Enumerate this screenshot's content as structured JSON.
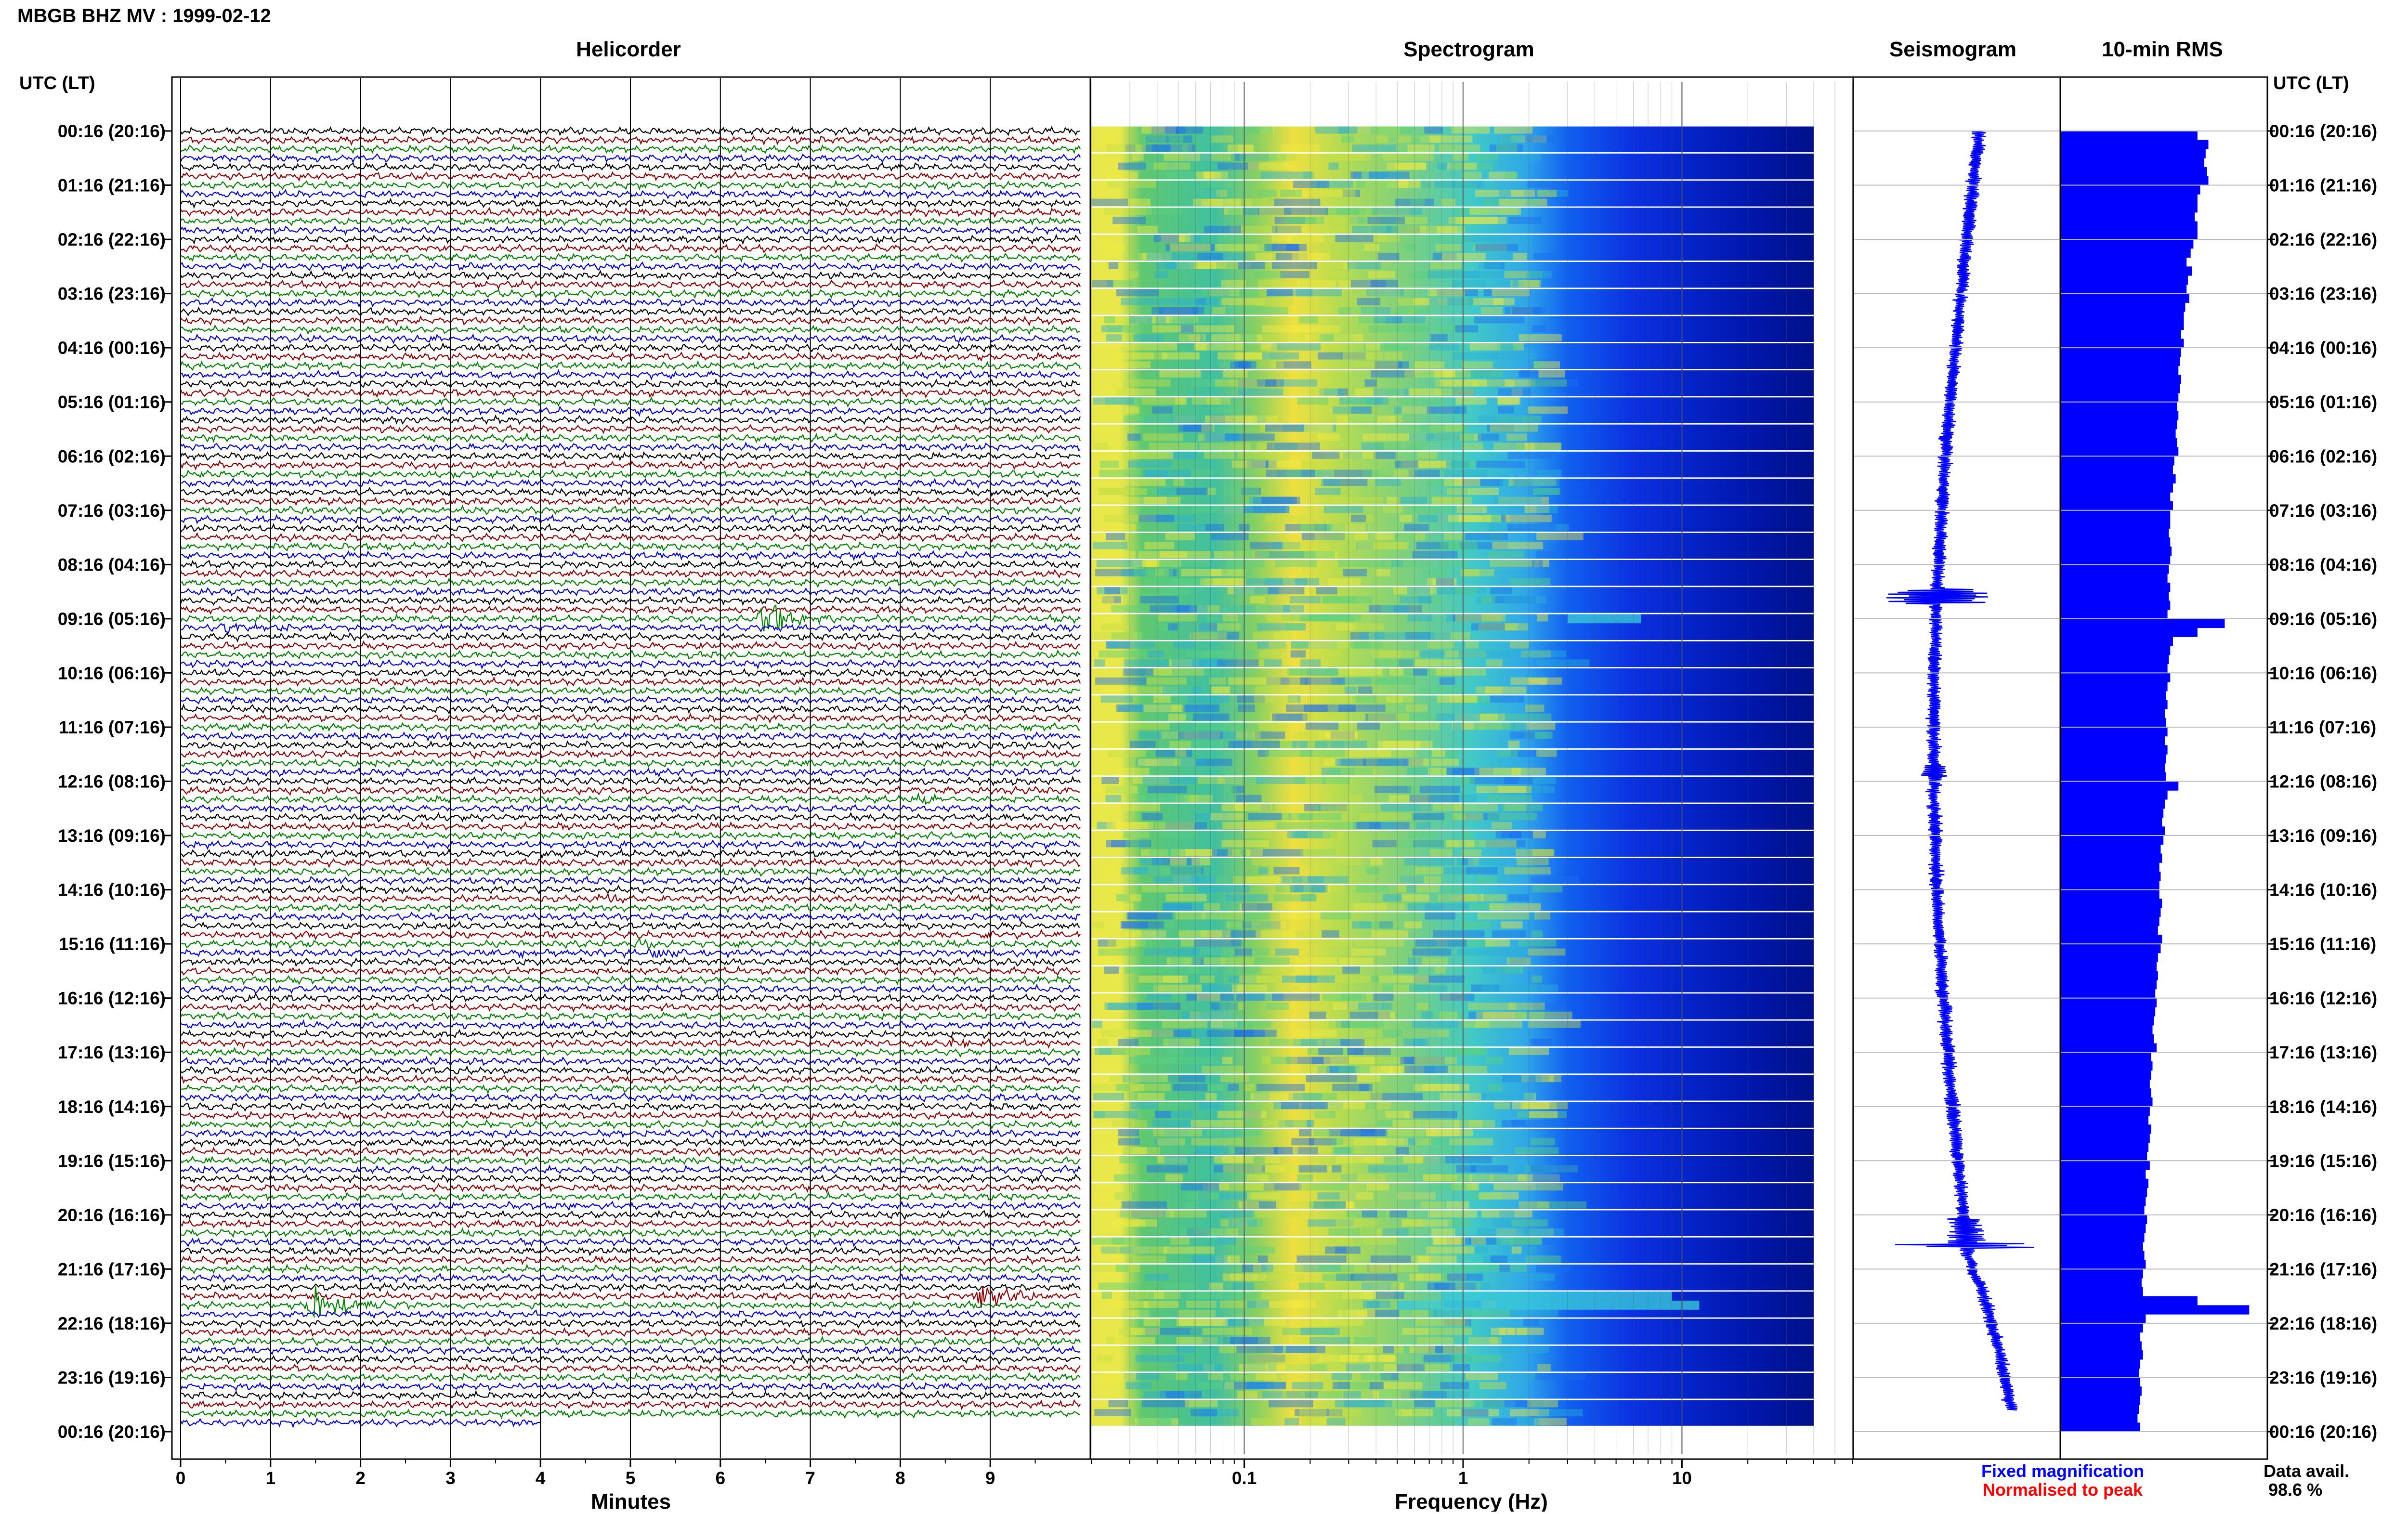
{
  "header": {
    "title": "MBGB BHZ MV : 1999-02-12",
    "utc_label_left": "UTC (LT)",
    "utc_label_right": "UTC (LT)"
  },
  "panels": {
    "helicorder": "Helicorder",
    "spectrogram": "Spectrogram",
    "seismogram": "Seismogram",
    "rms": "10-min RMS"
  },
  "time_labels": [
    "00:16 (20:16)",
    "01:16 (21:16)",
    "02:16 (22:16)",
    "03:16 (23:16)",
    "04:16 (00:16)",
    "05:16 (01:16)",
    "06:16 (02:16)",
    "07:16 (03:16)",
    "08:16 (04:16)",
    "09:16 (05:16)",
    "10:16 (06:16)",
    "11:16 (07:16)",
    "12:16 (08:16)",
    "13:16 (09:16)",
    "14:16 (10:16)",
    "15:16 (11:16)",
    "16:16 (12:16)",
    "17:16 (13:16)",
    "18:16 (14:16)",
    "19:16 (15:16)",
    "20:16 (16:16)",
    "21:16 (17:16)",
    "22:16 (18:16)",
    "23:16 (19:16)",
    "00:16 (20:16)"
  ],
  "footer": {
    "fixed_magnification": "Fixed magnification",
    "normalised_to_peak": "Normalised to peak",
    "data_avail_label": "Data avail.",
    "data_avail_value": "98.6 %"
  },
  "colors": {
    "trace_colors": [
      "#000000",
      "#8b0000",
      "#008000",
      "#0000cc"
    ],
    "fixed_magnification": "#0000ff",
    "normalised_to_peak": "#ff0000",
    "rms_fill": "#0000ff",
    "seismogram": "#0000ff"
  },
  "chart_data": [
    {
      "type": "line",
      "panel": "helicorder",
      "xlabel": "Minutes",
      "xlim": [
        0,
        10
      ],
      "x_ticks": [
        "0",
        "1",
        "2",
        "3",
        "4",
        "5",
        "6",
        "7",
        "8",
        "9"
      ],
      "lines_per_hour": 6,
      "total_lines": 144,
      "events": [
        {
          "line": 54,
          "minute": 6.5,
          "amp": 3.2
        },
        {
          "line": 55,
          "minute": 0.5,
          "amp": 1.2
        },
        {
          "line": 74,
          "minute": 8.2,
          "amp": 0.8
        },
        {
          "line": 85,
          "minute": 4.7,
          "amp": 1.0
        },
        {
          "line": 90,
          "minute": 5.1,
          "amp": 0.9
        },
        {
          "line": 91,
          "minute": 5.3,
          "amp": 1.0
        },
        {
          "line": 91,
          "minute": 3.8,
          "amp": 0.6
        },
        {
          "line": 89,
          "minute": 9.0,
          "amp": 0.8
        },
        {
          "line": 101,
          "minute": 8.6,
          "amp": 0.8
        },
        {
          "line": 129,
          "minute": 8.9,
          "amp": 2.2
        },
        {
          "line": 130,
          "minute": 1.5,
          "amp": 3.8
        }
      ]
    },
    {
      "type": "heatmap",
      "panel": "spectrogram",
      "xlabel": "Frequency (Hz)",
      "x_scale": "log",
      "xlim": [
        0.02,
        60
      ],
      "x_ticks": [
        "0.1",
        "1",
        "10"
      ]
    },
    {
      "type": "line",
      "panel": "seismogram",
      "series_note": "24-hour compressed seismogram trace"
    },
    {
      "type": "bar",
      "panel": "rms",
      "orientation": "horizontal",
      "values": [
        1.0,
        1.08,
        1.06,
        1.05,
        1.07,
        1.08,
        1.02,
        1.0,
        1.0,
        0.98,
        1.0,
        1.0,
        0.97,
        0.95,
        0.92,
        0.96,
        0.93,
        0.92,
        0.94,
        0.91,
        0.9,
        0.9,
        0.88,
        0.9,
        0.88,
        0.87,
        0.86,
        0.88,
        0.87,
        0.86,
        0.85,
        0.86,
        0.85,
        0.84,
        0.85,
        0.86,
        0.83,
        0.82,
        0.84,
        0.82,
        0.8,
        0.82,
        0.8,
        0.8,
        0.79,
        0.8,
        0.81,
        0.8,
        0.79,
        0.78,
        0.8,
        0.79,
        0.8,
        0.78,
        1.2,
        1.0,
        0.82,
        0.8,
        0.79,
        0.78,
        0.8,
        0.78,
        0.77,
        0.78,
        0.76,
        0.77,
        0.78,
        0.76,
        0.78,
        0.77,
        0.76,
        0.77,
        0.86,
        0.78,
        0.76,
        0.75,
        0.74,
        0.76,
        0.75,
        0.73,
        0.74,
        0.72,
        0.73,
        0.72,
        0.72,
        0.74,
        0.73,
        0.72,
        0.71,
        0.74,
        0.73,
        0.71,
        0.7,
        0.71,
        0.7,
        0.69,
        0.7,
        0.69,
        0.68,
        0.67,
        0.68,
        0.7,
        0.66,
        0.67,
        0.66,
        0.65,
        0.66,
        0.67,
        0.65,
        0.64,
        0.66,
        0.65,
        0.64,
        0.63,
        0.65,
        0.62,
        0.64,
        0.63,
        0.62,
        0.61,
        0.63,
        0.62,
        0.61,
        0.6,
        0.61,
        0.62,
        0.6,
        0.59,
        0.6,
        1.0,
        1.38,
        0.62,
        0.6,
        0.58,
        0.59,
        0.6,
        0.58,
        0.57,
        0.58,
        0.59,
        0.58,
        0.57,
        0.56,
        0.58
      ]
    }
  ]
}
